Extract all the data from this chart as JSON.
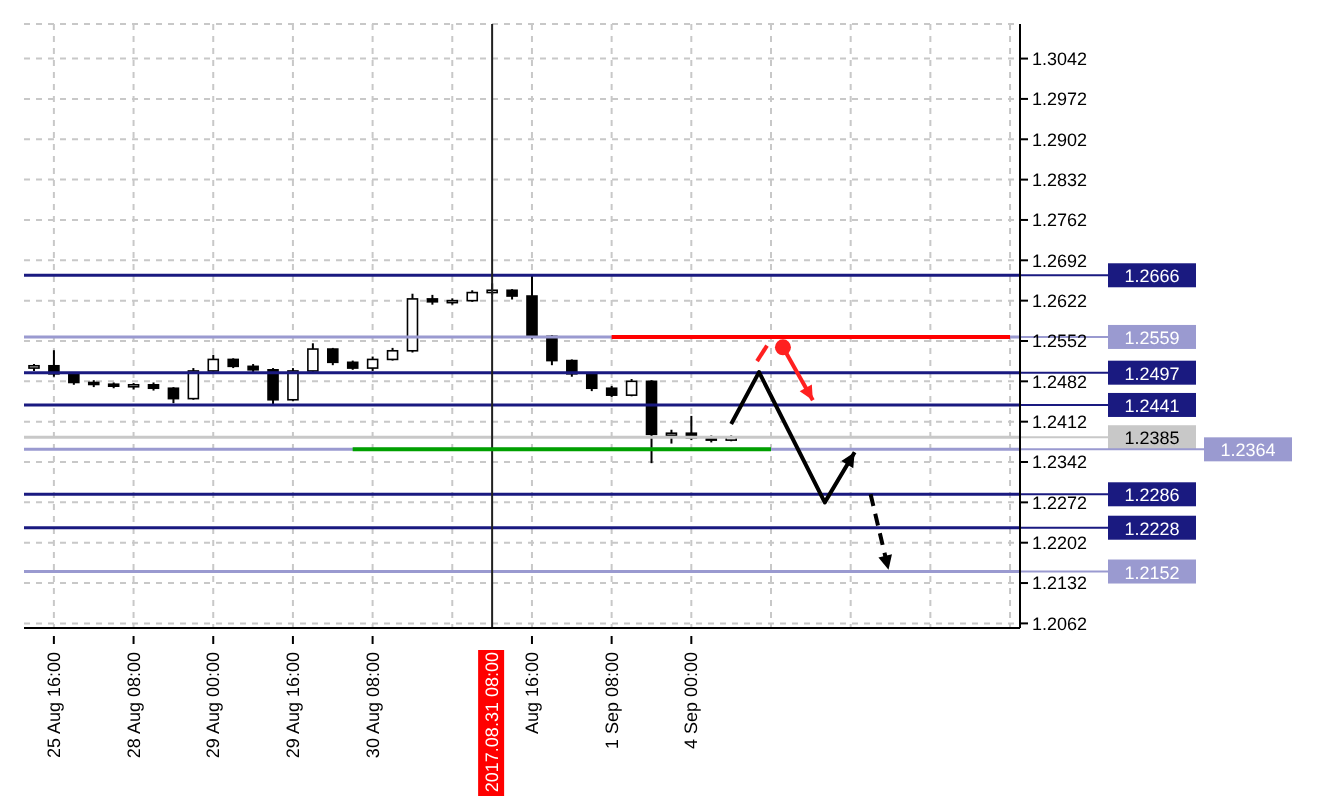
{
  "chart_data": {
    "type": "candlestick",
    "categories": [
      null,
      "25 Aug 16:00",
      null,
      null,
      null,
      "28 Aug 08:00",
      null,
      null,
      null,
      "29 Aug 00:00",
      null,
      null,
      null,
      "29 Aug 16:00",
      null,
      null,
      null,
      "30 Aug 08:00",
      null,
      null,
      null,
      null,
      null,
      "2017.08.31 08:00",
      null,
      "Aug 16:00",
      null,
      null,
      null,
      "1 Sep 08:00",
      null,
      null,
      null,
      "4 Sep 00:00",
      null,
      null,
      null,
      null,
      null,
      null,
      null,
      null,
      null,
      null,
      null,
      null,
      null,
      null,
      null,
      null
    ],
    "ohlc": [
      [
        1.2505,
        1.2512,
        1.25,
        1.2509
      ],
      [
        1.2509,
        1.2536,
        1.249,
        1.2495
      ],
      [
        1.2495,
        1.2498,
        1.2476,
        1.248
      ],
      [
        1.248,
        1.2484,
        1.2472,
        1.2477
      ],
      [
        1.2477,
        1.248,
        1.247,
        1.2474
      ],
      [
        1.2474,
        1.2479,
        1.2468,
        1.2476
      ],
      [
        1.2476,
        1.248,
        1.2466,
        1.247
      ],
      [
        1.247,
        1.2472,
        1.2444,
        1.2452
      ],
      [
        1.2452,
        1.2505,
        1.245,
        1.25
      ],
      [
        1.25,
        1.2528,
        1.2498,
        1.252
      ],
      [
        1.252,
        1.2522,
        1.2505,
        1.2508
      ],
      [
        1.2508,
        1.2512,
        1.2498,
        1.2502
      ],
      [
        1.2502,
        1.2505,
        1.2442,
        1.245
      ],
      [
        1.245,
        1.2505,
        1.2448,
        1.25
      ],
      [
        1.25,
        1.2548,
        1.2498,
        1.2538
      ],
      [
        1.2538,
        1.254,
        1.251,
        1.2515
      ],
      [
        1.2515,
        1.2518,
        1.2502,
        1.2505
      ],
      [
        1.2505,
        1.2525,
        1.25,
        1.252
      ],
      [
        1.252,
        1.254,
        1.2518,
        1.2535
      ],
      [
        1.2535,
        1.2634,
        1.2532,
        1.2625
      ],
      [
        1.2625,
        1.2632,
        1.2615,
        1.262
      ],
      [
        1.262,
        1.2626,
        1.2615,
        1.2622
      ],
      [
        1.2622,
        1.264,
        1.262,
        1.2636
      ],
      [
        1.2636,
        1.2652,
        1.2632,
        1.264
      ],
      [
        1.264,
        1.2642,
        1.2624,
        1.263
      ],
      [
        1.263,
        1.2666,
        1.2555,
        1.256
      ],
      [
        1.256,
        1.2562,
        1.251,
        1.2518
      ],
      [
        1.2518,
        1.252,
        1.249,
        1.2495
      ],
      [
        1.2495,
        1.2498,
        1.2465,
        1.247
      ],
      [
        1.247,
        1.2474,
        1.2455,
        1.2458
      ],
      [
        1.2458,
        1.2486,
        1.2456,
        1.2482
      ],
      [
        1.2482,
        1.2484,
        1.234,
        1.239
      ],
      [
        1.239,
        1.2398,
        1.2374,
        1.2392
      ],
      [
        1.2392,
        1.2422,
        1.238,
        1.2384
      ],
      [
        1.2384,
        1.2388,
        1.2376,
        1.238
      ],
      [
        1.238,
        1.2388,
        1.2378,
        1.2385
      ],
      null,
      null,
      null,
      null,
      null,
      null,
      null,
      null,
      null,
      null,
      null,
      null,
      null,
      null
    ],
    "series": [
      {
        "type": "line",
        "color": "#ff0000",
        "values": [
          null,
          null,
          null,
          null,
          null,
          null,
          null,
          null,
          null,
          null,
          null,
          null,
          null,
          null,
          null,
          null,
          null,
          null,
          null,
          null,
          null,
          null,
          null,
          null,
          null,
          null,
          null,
          null,
          null,
          1.2559,
          1.2559,
          1.2559,
          1.2559,
          1.2559,
          1.2559,
          1.2559,
          1.2559,
          1.2559,
          1.2559,
          1.2559,
          1.2559,
          1.2559,
          1.2559,
          1.2559,
          1.2559,
          1.2559,
          1.2559,
          1.2559,
          1.2559,
          1.2559
        ]
      },
      {
        "type": "line",
        "color": "#00a000",
        "values": [
          null,
          null,
          null,
          null,
          null,
          null,
          null,
          null,
          null,
          null,
          null,
          null,
          null,
          null,
          null,
          null,
          1.2364,
          1.2364,
          1.2364,
          1.2364,
          1.2364,
          1.2364,
          1.2364,
          1.2364,
          1.2364,
          1.2364,
          1.2364,
          1.2364,
          1.2364,
          1.2364,
          1.2364,
          1.2364,
          1.2364,
          1.2364,
          1.2364,
          1.2364,
          1.2364,
          1.2364,
          null,
          null,
          null,
          null,
          null,
          null,
          null,
          null,
          null,
          null,
          null,
          null
        ]
      }
    ],
    "ylim": [
      1.2054,
      1.3102
    ],
    "yticks": [
      1.3042,
      1.2972,
      1.2902,
      1.2832,
      1.2762,
      1.2692,
      1.2622,
      1.2552,
      1.2482,
      1.2412,
      1.2342,
      1.2272,
      1.2202,
      1.2132,
      1.2062
    ],
    "grid": true,
    "ref_lines": [
      {
        "axis": "y",
        "value": 1.2666,
        "label": "1.2666",
        "color": "#1a1a80"
      },
      {
        "axis": "y",
        "value": 1.2559,
        "label": "1.2559",
        "color": "#9a9ad0"
      },
      {
        "axis": "y",
        "value": 1.2497,
        "label": "1.2497",
        "color": "#1a1a80"
      },
      {
        "axis": "y",
        "value": 1.2441,
        "label": "1.2441",
        "color": "#1a1a80"
      },
      {
        "axis": "y",
        "value": 1.2385,
        "label": "1.2385",
        "color": "#c8c8c8"
      },
      {
        "axis": "y",
        "value": 1.2364,
        "label": "1.2364",
        "color": "#9a9ad0"
      },
      {
        "axis": "y",
        "value": 1.2286,
        "label": "1.2286",
        "color": "#1a1a80"
      },
      {
        "axis": "y",
        "value": 1.2228,
        "label": "1.2228",
        "color": "#1a1a80"
      },
      {
        "axis": "y",
        "value": 1.2152,
        "label": "1.2152",
        "color": "#9a9ad0"
      },
      {
        "axis": "x",
        "value": "2017.08.31 08:00",
        "color": "#202020"
      }
    ]
  }
}
